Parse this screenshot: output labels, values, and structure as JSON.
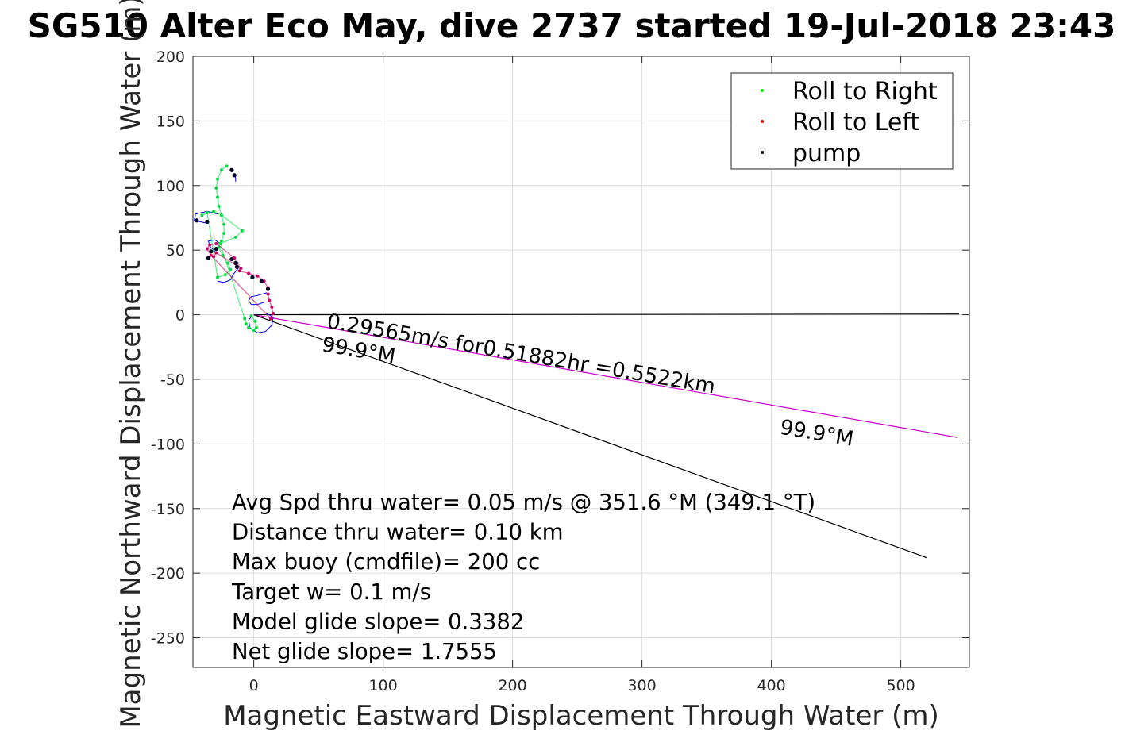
{
  "chart_data": {
    "type": "scatter",
    "title": "SG510 Alter Eco May, dive 2737 started 19-Jul-2018 23:43",
    "xlabel": "Magnetic Eastward Displacement Through Water (m)",
    "ylabel": "Magnetic Northward Displacement Through Water (m)",
    "xlim": [
      -47,
      553
    ],
    "ylim": [
      -273,
      200
    ],
    "xticks": [
      0,
      100,
      200,
      300,
      400,
      500
    ],
    "xtick_labels": [
      "0",
      "100",
      "200",
      "300",
      "400",
      "500"
    ],
    "yticks": [
      200,
      150,
      100,
      50,
      0,
      -50,
      -100,
      -150,
      -200,
      -250
    ],
    "ytick_labels": [
      "200",
      "150",
      "100",
      "50",
      "0",
      "-50",
      "-100",
      "-150",
      "-200",
      "-250"
    ],
    "grid": true,
    "legend_position": "top-right",
    "legend": [
      {
        "label": "Roll to Right",
        "color": "#00ee00"
      },
      {
        "label": "Roll to Left",
        "color": "#ee0000"
      },
      {
        "label": "pump",
        "color": "#000000"
      }
    ],
    "series": [
      {
        "name": "Roll to Right",
        "color": "#00dd44",
        "points": [
          [
            -21,
            115
          ],
          [
            -25,
            112
          ],
          [
            -28,
            105
          ],
          [
            -29,
            98
          ],
          [
            -28,
            91
          ],
          [
            -27,
            84
          ],
          [
            -25,
            77
          ],
          [
            -23,
            70
          ],
          [
            -23,
            63
          ],
          [
            -25,
            57
          ],
          [
            -27,
            52
          ],
          [
            -24,
            46
          ],
          [
            -20,
            40
          ],
          [
            -18,
            35
          ],
          [
            -22,
            31
          ],
          [
            -28,
            29
          ],
          [
            -36,
            79
          ],
          [
            -40,
            77
          ],
          [
            -31,
            80
          ],
          [
            -25,
            77
          ],
          [
            -9,
            65
          ],
          [
            -14,
            60
          ],
          [
            -26,
            55
          ],
          [
            -7,
            -3
          ],
          [
            -6,
            -7
          ],
          [
            -4,
            -10
          ],
          [
            0,
            -12
          ],
          [
            2,
            -10
          ],
          [
            1,
            -5
          ],
          [
            -2,
            -1
          ]
        ]
      },
      {
        "name": "Roll to Left",
        "color": "#cc0066",
        "points": [
          [
            -11,
            34
          ],
          [
            -4,
            32
          ],
          [
            3,
            30
          ],
          [
            8,
            26
          ],
          [
            11,
            21
          ],
          [
            11,
            16
          ],
          [
            12,
            11
          ],
          [
            14,
            6
          ],
          [
            15,
            1
          ],
          [
            13,
            -3
          ],
          [
            -33,
            46
          ],
          [
            -36,
            51
          ],
          [
            -34,
            54
          ],
          [
            -29,
            55
          ],
          [
            -15,
            44
          ],
          [
            -13,
            40
          ],
          [
            -10,
            36
          ],
          [
            -29,
            48
          ],
          [
            -31,
            45
          ]
        ]
      },
      {
        "name": "pump",
        "color": "#000022",
        "points": [
          [
            -17,
            112
          ],
          [
            -15,
            108
          ],
          [
            -36,
            72
          ],
          [
            -44,
            73
          ],
          [
            -29,
            51
          ],
          [
            -33,
            49
          ],
          [
            -35,
            44
          ],
          [
            -17,
            43
          ],
          [
            -14,
            40
          ],
          [
            -13,
            37
          ],
          [
            -1,
            29
          ],
          [
            6,
            26
          ],
          [
            11,
            20
          ]
        ]
      }
    ],
    "current_curves": [
      [
        [
          -15,
          109
        ],
        [
          -14,
          106
        ],
        [
          -14,
          103
        ]
      ],
      [
        [
          -37,
          71
        ],
        [
          -46,
          73
        ],
        [
          -45,
          78
        ],
        [
          -36,
          80
        ],
        [
          -28,
          78
        ]
      ],
      [
        [
          -30,
          49
        ],
        [
          -34,
          53
        ],
        [
          -35,
          57
        ],
        [
          -30,
          58
        ],
        [
          -26,
          55
        ]
      ],
      [
        [
          -12,
          36
        ],
        [
          -16,
          31
        ],
        [
          -18,
          27
        ],
        [
          -23,
          25
        ],
        [
          -28,
          26
        ]
      ],
      [
        [
          10,
          17
        ],
        [
          3,
          15
        ],
        [
          -2,
          14
        ],
        [
          -4,
          11
        ],
        [
          -2,
          8
        ],
        [
          3,
          8
        ],
        [
          9,
          10
        ]
      ],
      [
        [
          10,
          1
        ],
        [
          15,
          -2
        ],
        [
          14,
          -8
        ],
        [
          9,
          -13
        ],
        [
          3,
          -14
        ],
        [
          -3,
          -10
        ],
        [
          -4,
          -4
        ],
        [
          -1,
          -1
        ]
      ]
    ],
    "lines": [
      {
        "x": [
          0,
          545
        ],
        "y": [
          0,
          0.5
        ],
        "color": "#000000"
      },
      {
        "x": [
          0,
          544
        ],
        "y": [
          0,
          -95
        ],
        "color": "#cc00cc"
      },
      {
        "x": [
          0,
          520
        ],
        "y": [
          0,
          -188
        ],
        "color": "#000000"
      }
    ],
    "annotations": [
      {
        "text": "0.29565m/s for0.51882hr =0.5522km",
        "x": 56,
        "y": -10,
        "angle": 9.6
      },
      {
        "text": "99.9°M",
        "x": 52,
        "y": -28,
        "angle": 9.6
      },
      {
        "text": "99.9°M",
        "x": 406,
        "y": -92,
        "angle": 9.6
      }
    ],
    "notes": [
      "Avg Spd thru water=  0.05 m/s @ 351.6 °M (349.1 °T)",
      "Distance thru water=  0.10 km",
      "Max buoy (cmdfile)= 200 cc",
      "Target w= 0.1 m/s",
      "Model glide slope= 0.3382",
      "Net glide slope= 1.7555"
    ]
  }
}
